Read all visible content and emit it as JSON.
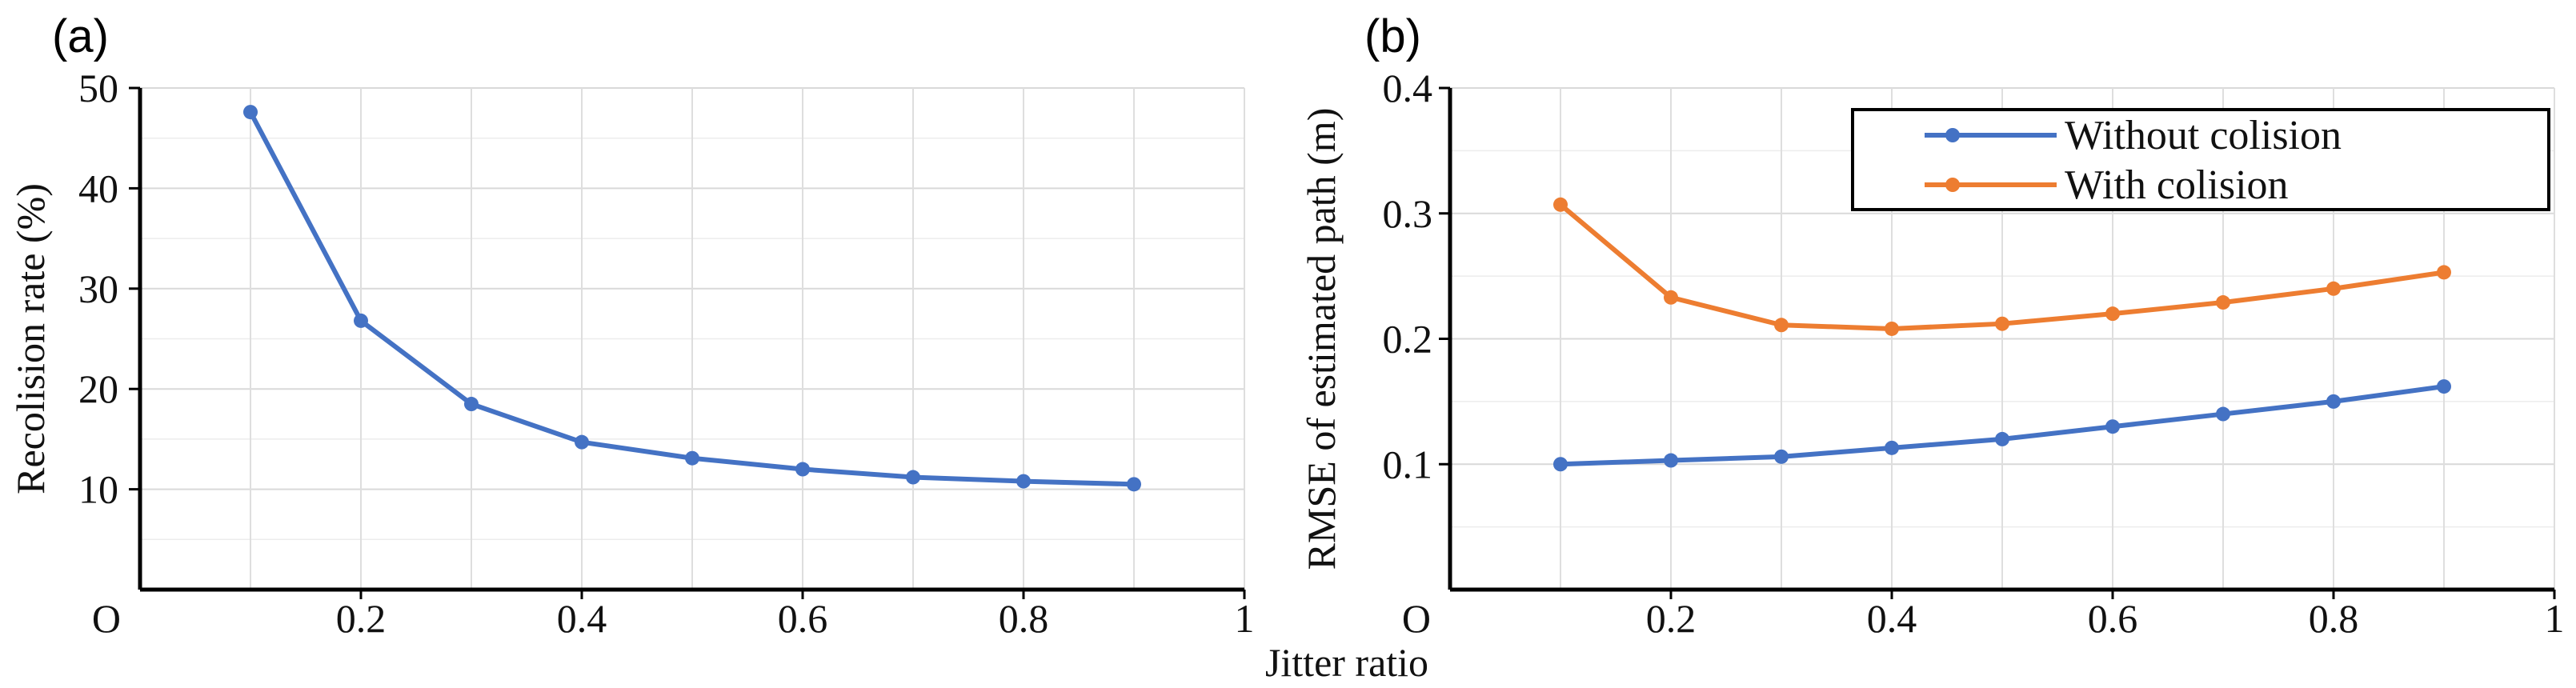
{
  "chart_data": [
    {
      "panel_label": "(a)",
      "type": "line",
      "xlabel": "Jitter ratio",
      "ylabel": "Recolision rate (%)",
      "xlim": [
        0,
        1
      ],
      "ylim": [
        0,
        50
      ],
      "x_ticks": [
        0.2,
        0.4,
        0.6,
        0.8,
        1
      ],
      "x_tick_labels": [
        "0.2",
        "0.4",
        "0.6",
        "0.8",
        "1"
      ],
      "y_ticks": [
        10,
        20,
        30,
        40,
        50
      ],
      "y_tick_labels": [
        "10",
        "20",
        "30",
        "40",
        "50"
      ],
      "origin_label": "O",
      "grid": true,
      "series": [
        {
          "name": "Recolision rate",
          "color": "#4472C4",
          "x": [
            0.1,
            0.2,
            0.3,
            0.4,
            0.5,
            0.6,
            0.7,
            0.8,
            0.9
          ],
          "values": [
            47.6,
            26.8,
            18.5,
            14.7,
            13.1,
            12.0,
            11.2,
            10.8,
            10.5
          ]
        }
      ]
    },
    {
      "panel_label": "(b)",
      "type": "line",
      "xlabel": "Jitter ratio",
      "ylabel": "RMSE of estimated path (m)",
      "xlim": [
        0,
        1
      ],
      "ylim": [
        0,
        0.4
      ],
      "x_ticks": [
        0.2,
        0.4,
        0.6,
        0.8,
        1
      ],
      "x_tick_labels": [
        "0.2",
        "0.4",
        "0.6",
        "0.8",
        "1"
      ],
      "y_ticks": [
        0.1,
        0.2,
        0.3,
        0.4
      ],
      "y_tick_labels": [
        "0.1",
        "0.2",
        "0.3",
        "0.4"
      ],
      "origin_label": "O",
      "grid": true,
      "legend_position": "top-right",
      "series": [
        {
          "name": "Without colision",
          "color": "#4472C4",
          "x": [
            0.1,
            0.2,
            0.3,
            0.4,
            0.5,
            0.6,
            0.7,
            0.8,
            0.9
          ],
          "values": [
            0.1,
            0.103,
            0.106,
            0.113,
            0.12,
            0.13,
            0.14,
            0.15,
            0.162
          ]
        },
        {
          "name": "With colision",
          "color": "#ED7D31",
          "x": [
            0.1,
            0.2,
            0.3,
            0.4,
            0.5,
            0.6,
            0.7,
            0.8,
            0.9
          ],
          "values": [
            0.307,
            0.233,
            0.211,
            0.208,
            0.212,
            0.22,
            0.229,
            0.24,
            0.253
          ]
        }
      ]
    }
  ]
}
